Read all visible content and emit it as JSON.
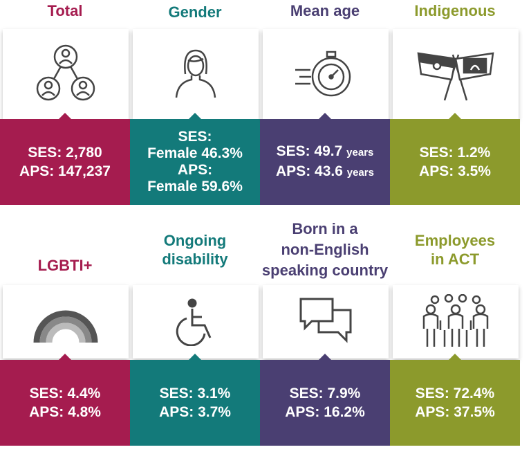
{
  "row1": [
    {
      "title": [
        "Total"
      ],
      "lines": [
        {
          "text": "SES: 2,780"
        },
        {
          "text": "APS: 147,237"
        }
      ],
      "color": "#a51c4f",
      "icon": "people-network-icon"
    },
    {
      "title": [
        "Gender"
      ],
      "lines": [
        {
          "text": "SES:"
        },
        {
          "text": "Female 46.3%"
        },
        {
          "text": "APS:"
        },
        {
          "text": "Female 59.6%"
        }
      ],
      "color": "#137a7a",
      "icon": "woman-icon"
    },
    {
      "title": [
        "Mean age"
      ],
      "lines": [
        {
          "text": "SES: 49.7",
          "unit": "years"
        },
        {
          "text": "APS: 43.6",
          "unit": "years"
        }
      ],
      "color": "#4a3f72",
      "icon": "stopwatch-icon"
    },
    {
      "title": [
        "Indigenous"
      ],
      "lines": [
        {
          "text": "SES: 1.2%"
        },
        {
          "text": "APS: 3.5%"
        }
      ],
      "color": "#8c9a2c",
      "icon": "flags-icon"
    }
  ],
  "row2": [
    {
      "title": [
        "LGBTI+"
      ],
      "lines": [
        {
          "text": "SES: 4.4%"
        },
        {
          "text": "APS: 4.8%"
        }
      ],
      "color": "#a51c4f",
      "icon": "rainbow-icon"
    },
    {
      "title": [
        "Ongoing",
        "disability"
      ],
      "lines": [
        {
          "text": "SES: 3.1%"
        },
        {
          "text": "APS: 3.7%"
        }
      ],
      "color": "#137a7a",
      "icon": "wheelchair-icon"
    },
    {
      "title": [
        "Born in a",
        "non-English",
        "speaking country"
      ],
      "lines": [
        {
          "text": "SES: 7.9%"
        },
        {
          "text": "APS: 16.2%"
        }
      ],
      "color": "#4a3f72",
      "icon": "speech-bubbles-icon"
    },
    {
      "title": [
        "Employees",
        "in ACT"
      ],
      "lines": [
        {
          "text": "SES: 72.4%"
        },
        {
          "text": "APS: 37.5%"
        }
      ],
      "color": "#8c9a2c",
      "icon": "group-icon"
    }
  ]
}
